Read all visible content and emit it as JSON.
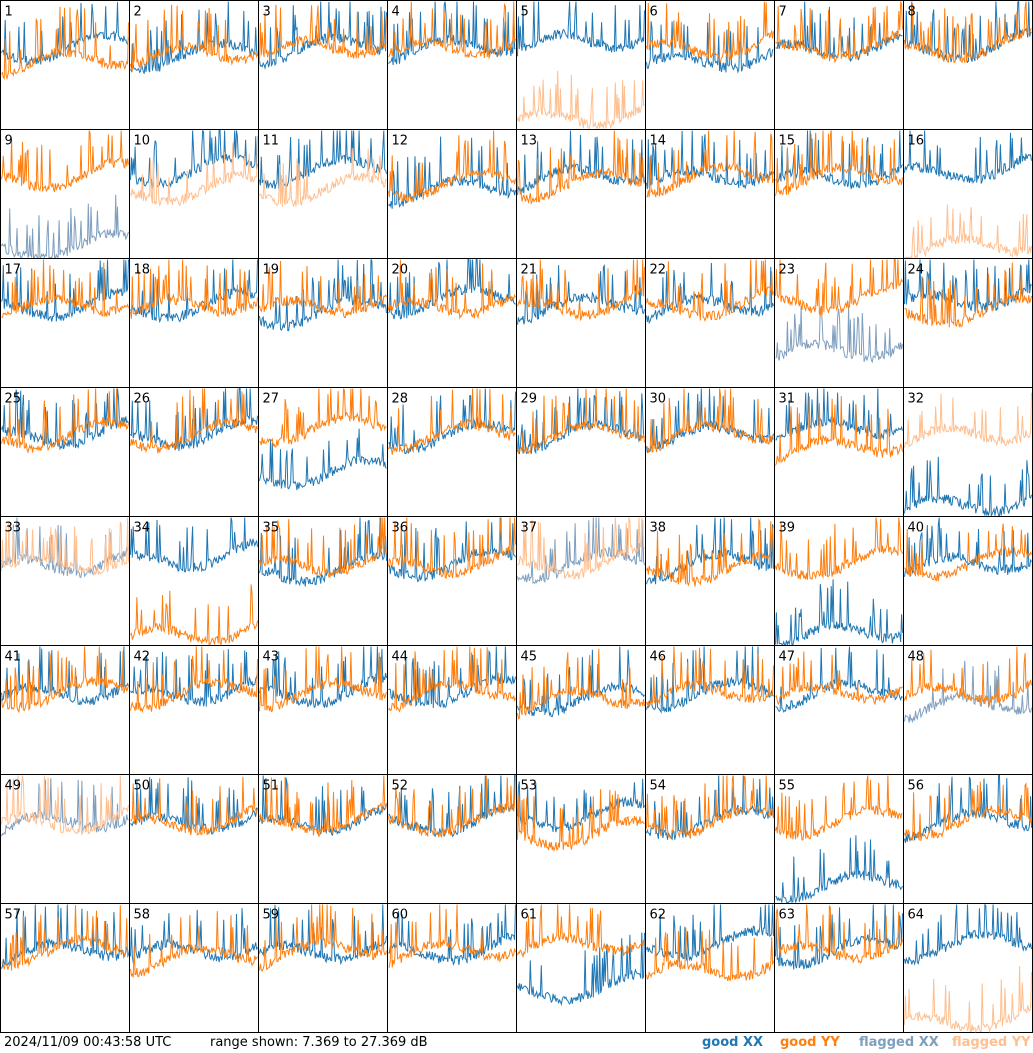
{
  "footer": {
    "timestamp": "2024/11/09 00:43:58 UTC",
    "range": "range shown: 7.369 to 27.369 dB"
  },
  "legend": [
    {
      "label": "good",
      "pol": "XX",
      "color": "#1f77b4"
    },
    {
      "label": "good",
      "pol": "YY",
      "color": "#ff7f0e"
    },
    {
      "label": "flagged",
      "pol": "XX",
      "color": "#7f9fbf"
    },
    {
      "label": "flagged",
      "pol": "YY",
      "color": "#ffbf8f"
    }
  ],
  "colors": {
    "good_xx": "#1f77b4",
    "good_yy": "#ff7f0e",
    "flagged_xx": "#7f9fbf",
    "flagged_yy": "#ffbf8f"
  },
  "chart_data": {
    "type": "line",
    "title": "",
    "xlabel": "",
    "ylabel": "",
    "ylim": [
      7.369,
      27.369
    ],
    "units": "dB",
    "grid": "8x8 small multiples",
    "panels": [
      {
        "id": "1",
        "xx": "good",
        "yy": "good",
        "xx_level": 19,
        "yy_level": 17
      },
      {
        "id": "2",
        "xx": "good",
        "yy": "good",
        "xx_level": 18,
        "yy_level": 18
      },
      {
        "id": "3",
        "xx": "good",
        "yy": "good",
        "xx_level": 19,
        "yy_level": 19
      },
      {
        "id": "4",
        "xx": "good",
        "yy": "good",
        "xx_level": 19,
        "yy_level": 19
      },
      {
        "id": "5",
        "xx": "good",
        "yy": "flagged",
        "xx_level": 20,
        "yy_level": 8
      },
      {
        "id": "6",
        "xx": "good",
        "yy": "good",
        "xx_level": 17,
        "yy_level": 19
      },
      {
        "id": "7",
        "xx": "good",
        "yy": "good",
        "xx_level": 19,
        "yy_level": 19
      },
      {
        "id": "8",
        "xx": "good",
        "yy": "good",
        "xx_level": 19,
        "yy_level": 19
      },
      {
        "id": "9",
        "xx": "flagged",
        "yy": "good",
        "xx_level": 8,
        "yy_level": 19
      },
      {
        "id": "10",
        "xx": "good",
        "yy": "flagged",
        "xx_level": 20,
        "yy_level": 17
      },
      {
        "id": "11",
        "xx": "good",
        "yy": "flagged",
        "xx_level": 20,
        "yy_level": 17
      },
      {
        "id": "12",
        "xx": "good",
        "yy": "good",
        "xx_level": 17,
        "yy_level": 18
      },
      {
        "id": "13",
        "xx": "good",
        "yy": "good",
        "xx_level": 19,
        "yy_level": 18
      },
      {
        "id": "14",
        "xx": "good",
        "yy": "good",
        "xx_level": 19,
        "yy_level": 19
      },
      {
        "id": "15",
        "xx": "good",
        "yy": "good",
        "xx_level": 19,
        "yy_level": 19
      },
      {
        "id": "16",
        "xx": "good",
        "yy": "flagged",
        "xx_level": 20,
        "yy_level": 8
      },
      {
        "id": "17",
        "xx": "good",
        "yy": "good",
        "xx_level": 19,
        "yy_level": 19
      },
      {
        "id": "18",
        "xx": "good",
        "yy": "good",
        "xx_level": 19,
        "yy_level": 19
      },
      {
        "id": "19",
        "xx": "good",
        "yy": "good",
        "xx_level": 18,
        "yy_level": 19
      },
      {
        "id": "20",
        "xx": "good",
        "yy": "good",
        "xx_level": 20,
        "yy_level": 19
      },
      {
        "id": "21",
        "xx": "good",
        "yy": "good",
        "xx_level": 19,
        "yy_level": 19
      },
      {
        "id": "22",
        "xx": "good",
        "yy": "good",
        "xx_level": 19,
        "yy_level": 19
      },
      {
        "id": "23",
        "xx": "flagged",
        "yy": "good",
        "xx_level": 12,
        "yy_level": 20
      },
      {
        "id": "24",
        "xx": "good",
        "yy": "good",
        "xx_level": 20,
        "yy_level": 18
      },
      {
        "id": "25",
        "xx": "good",
        "yy": "good",
        "xx_level": 19,
        "yy_level": 19
      },
      {
        "id": "26",
        "xx": "good",
        "yy": "good",
        "xx_level": 19,
        "yy_level": 19
      },
      {
        "id": "27",
        "xx": "good",
        "yy": "good",
        "xx_level": 13,
        "yy_level": 20
      },
      {
        "id": "28",
        "xx": "good",
        "yy": "good",
        "xx_level": 19,
        "yy_level": 19
      },
      {
        "id": "29",
        "xx": "good",
        "yy": "good",
        "xx_level": 19,
        "yy_level": 19
      },
      {
        "id": "30",
        "xx": "good",
        "yy": "good",
        "xx_level": 19,
        "yy_level": 19
      },
      {
        "id": "31",
        "xx": "good",
        "yy": "good",
        "xx_level": 20,
        "yy_level": 17
      },
      {
        "id": "32",
        "xx": "good",
        "yy": "flagged",
        "xx_level": 8,
        "yy_level": 19
      },
      {
        "id": "33",
        "xx": "flagged",
        "yy": "flagged",
        "xx_level": 19,
        "yy_level": 19
      },
      {
        "id": "34",
        "xx": "good",
        "yy": "good",
        "xx_level": 20,
        "yy_level": 8
      },
      {
        "id": "35",
        "xx": "good",
        "yy": "good",
        "xx_level": 18,
        "yy_level": 19
      },
      {
        "id": "36",
        "xx": "good",
        "yy": "good",
        "xx_level": 19,
        "yy_level": 19
      },
      {
        "id": "37",
        "xx": "flagged",
        "yy": "flagged",
        "xx_level": 19,
        "yy_level": 19
      },
      {
        "id": "38",
        "xx": "good",
        "yy": "good",
        "xx_level": 19,
        "yy_level": 18
      },
      {
        "id": "39",
        "xx": "good",
        "yy": "good",
        "xx_level": 8,
        "yy_level": 19
      },
      {
        "id": "40",
        "xx": "good",
        "yy": "good",
        "xx_level": 19,
        "yy_level": 19
      },
      {
        "id": "41",
        "xx": "good",
        "yy": "good",
        "xx_level": 19,
        "yy_level": 19
      },
      {
        "id": "42",
        "xx": "good",
        "yy": "good",
        "xx_level": 19,
        "yy_level": 19
      },
      {
        "id": "43",
        "xx": "good",
        "yy": "good",
        "xx_level": 19,
        "yy_level": 19
      },
      {
        "id": "44",
        "xx": "good",
        "yy": "good",
        "xx_level": 19,
        "yy_level": 19
      },
      {
        "id": "45",
        "xx": "good",
        "yy": "good",
        "xx_level": 18,
        "yy_level": 18
      },
      {
        "id": "46",
        "xx": "good",
        "yy": "good",
        "xx_level": 19,
        "yy_level": 19
      },
      {
        "id": "47",
        "xx": "good",
        "yy": "good",
        "xx_level": 19,
        "yy_level": 19
      },
      {
        "id": "48",
        "xx": "flagged",
        "yy": "good",
        "xx_level": 17,
        "yy_level": 19
      },
      {
        "id": "49",
        "xx": "flagged",
        "yy": "flagged",
        "xx_level": 19,
        "yy_level": 19
      },
      {
        "id": "50",
        "xx": "good",
        "yy": "good",
        "xx_level": 19,
        "yy_level": 19
      },
      {
        "id": "51",
        "xx": "good",
        "yy": "good",
        "xx_level": 19,
        "yy_level": 19
      },
      {
        "id": "52",
        "xx": "good",
        "yy": "good",
        "xx_level": 19,
        "yy_level": 19
      },
      {
        "id": "53",
        "xx": "good",
        "yy": "good",
        "xx_level": 20,
        "yy_level": 17
      },
      {
        "id": "54",
        "xx": "good",
        "yy": "good",
        "xx_level": 19,
        "yy_level": 19
      },
      {
        "id": "55",
        "xx": "good",
        "yy": "good",
        "xx_level": 9,
        "yy_level": 19
      },
      {
        "id": "56",
        "xx": "good",
        "yy": "good",
        "xx_level": 19,
        "yy_level": 19
      },
      {
        "id": "57",
        "xx": "good",
        "yy": "good",
        "xx_level": 19,
        "yy_level": 19
      },
      {
        "id": "58",
        "xx": "good",
        "yy": "good",
        "xx_level": 19,
        "yy_level": 18
      },
      {
        "id": "59",
        "xx": "good",
        "yy": "good",
        "xx_level": 19,
        "yy_level": 19
      },
      {
        "id": "60",
        "xx": "good",
        "yy": "good",
        "xx_level": 19,
        "yy_level": 19
      },
      {
        "id": "61",
        "xx": "good",
        "yy": "good",
        "xx_level": 13,
        "yy_level": 20
      },
      {
        "id": "62",
        "xx": "good",
        "yy": "good",
        "xx_level": 20,
        "yy_level": 16
      },
      {
        "id": "63",
        "xx": "good",
        "yy": "good",
        "xx_level": 19,
        "yy_level": 19
      },
      {
        "id": "64",
        "xx": "good",
        "yy": "flagged",
        "xx_level": 20,
        "yy_level": 8
      }
    ]
  }
}
